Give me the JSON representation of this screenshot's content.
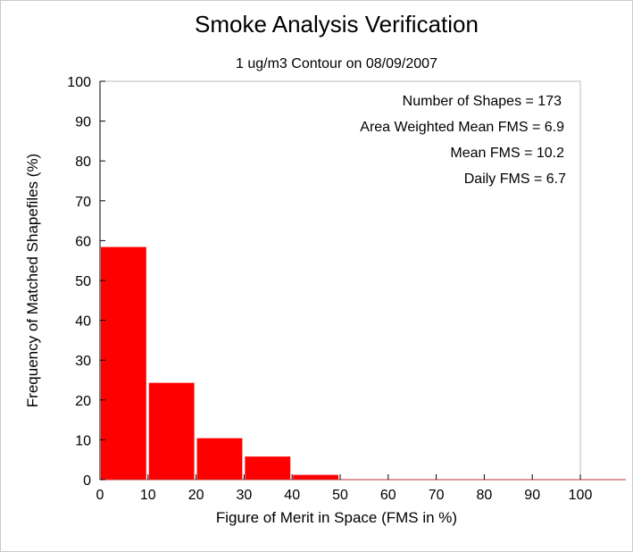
{
  "chart_data": {
    "type": "bar",
    "title": "Smoke Analysis Verification",
    "subtitle": "1 ug/m3 Contour on 08/09/2007",
    "xlabel": "Figure of Merit in Space (FMS in %)",
    "ylabel": "Frequency of Matched Shapefiles (%)",
    "xlim": [
      0,
      100
    ],
    "ylim": [
      0,
      100
    ],
    "xticks": [
      "0",
      "10",
      "20",
      "30",
      "40",
      "50",
      "60",
      "70",
      "80",
      "90",
      "100"
    ],
    "yticks": [
      "0",
      "10",
      "20",
      "30",
      "40",
      "50",
      "60",
      "70",
      "80",
      "90",
      "100"
    ],
    "bins": [
      {
        "from": 0,
        "to": 10,
        "value": 58.4
      },
      {
        "from": 10,
        "to": 20,
        "value": 24.3
      },
      {
        "from": 20,
        "to": 30,
        "value": 10.4
      },
      {
        "from": 30,
        "to": 40,
        "value": 5.8
      },
      {
        "from": 40,
        "to": 50,
        "value": 1.2
      },
      {
        "from": 50,
        "to": 60,
        "value": 0
      },
      {
        "from": 60,
        "to": 70,
        "value": 0
      },
      {
        "from": 70,
        "to": 80,
        "value": 0
      },
      {
        "from": 80,
        "to": 90,
        "value": 0
      },
      {
        "from": 90,
        "to": 100,
        "value": 0
      }
    ],
    "bar_color": "#ff0000",
    "grid": false,
    "stats": [
      "Number of Shapes = 173",
      "Area Weighted Mean FMS = 6.9",
      "Mean FMS = 10.2",
      "Daily FMS = 6.7"
    ],
    "stats_placement": "top-right"
  }
}
